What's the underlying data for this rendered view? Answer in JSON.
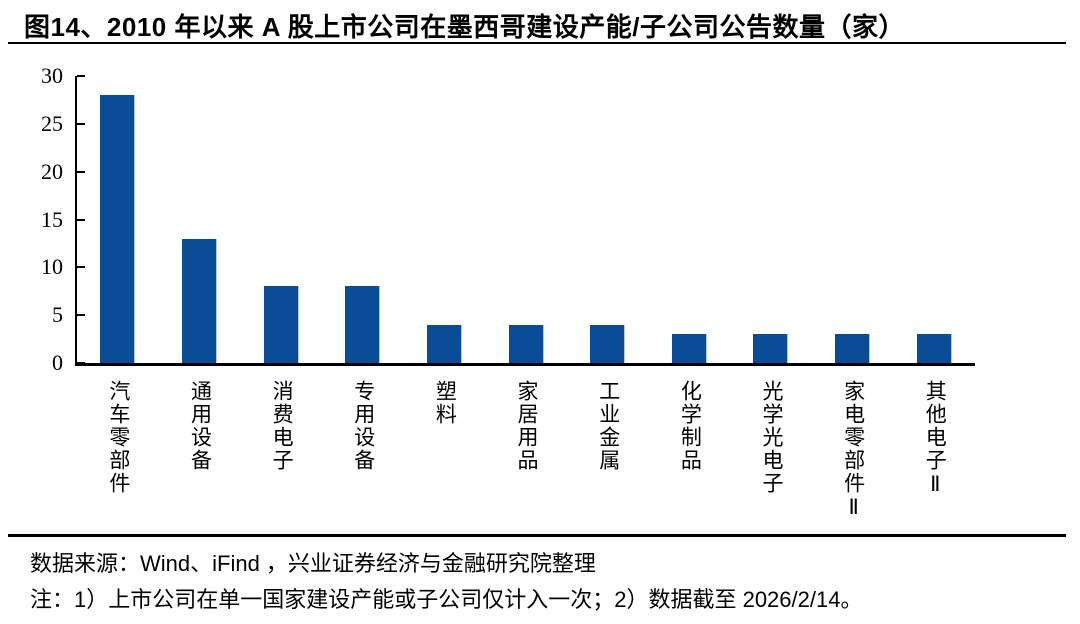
{
  "title": "图14、2010 年以来 A 股上市公司在墨西哥建设产能/子公司公告数量（家）",
  "chart_data": {
    "type": "bar",
    "title": "2010 年以来 A 股上市公司在墨西哥建设产能/子公司公告数量（家）",
    "categories": [
      "汽车零部件",
      "通用设备",
      "消费电子",
      "专用设备",
      "塑料",
      "家居用品",
      "工业金属",
      "化学制品",
      "光学光电子",
      "家电零部件Ⅱ",
      "其他电子Ⅱ"
    ],
    "values": [
      28,
      13,
      8,
      8,
      4,
      4,
      4,
      3,
      3,
      3,
      3
    ],
    "xlabel": "",
    "ylabel": "",
    "ylim": [
      0,
      30
    ],
    "yticks": [
      0,
      5,
      10,
      15,
      20,
      25,
      30
    ],
    "grid": "off",
    "legend": "none",
    "bar_color": "#0B4C96"
  },
  "footer": {
    "source": "数据来源：Wind、iFind ，兴业证券经济与金融研究院整理",
    "note": "注：1）上市公司在单一国家建设产能或子公司仅计入一次；2）数据截至 2026/2/14。"
  }
}
